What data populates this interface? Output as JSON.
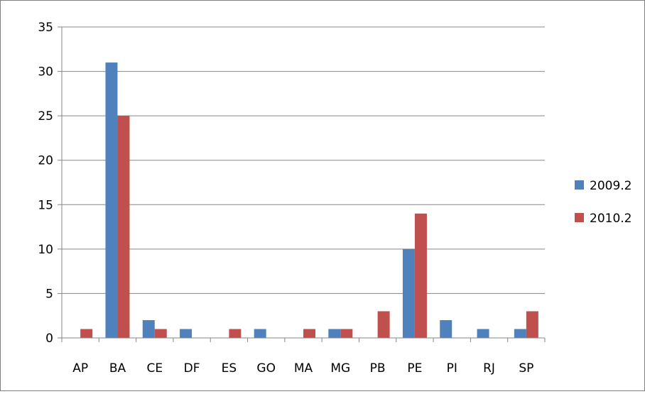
{
  "chart_data": {
    "type": "bar",
    "title": "",
    "xlabel": "",
    "ylabel": "",
    "categories": [
      "AP",
      "BA",
      "CE",
      "DF",
      "ES",
      "GO",
      "MA",
      "MG",
      "PB",
      "PE",
      "PI",
      "RJ",
      "SP"
    ],
    "series": [
      {
        "name": "2009.2",
        "color": "#4f81bd",
        "values": [
          0,
          31,
          2,
          1,
          0,
          1,
          0,
          1,
          0,
          10,
          2,
          1,
          1
        ]
      },
      {
        "name": "2010.2",
        "color": "#c0504d",
        "values": [
          1,
          25,
          1,
          0,
          1,
          0,
          1,
          1,
          3,
          14,
          0,
          0,
          3
        ]
      }
    ],
    "ylim": [
      0,
      35
    ],
    "yticks": [
      0,
      5,
      10,
      15,
      20,
      25,
      30,
      35
    ],
    "grid": true,
    "legend_position": "right"
  }
}
